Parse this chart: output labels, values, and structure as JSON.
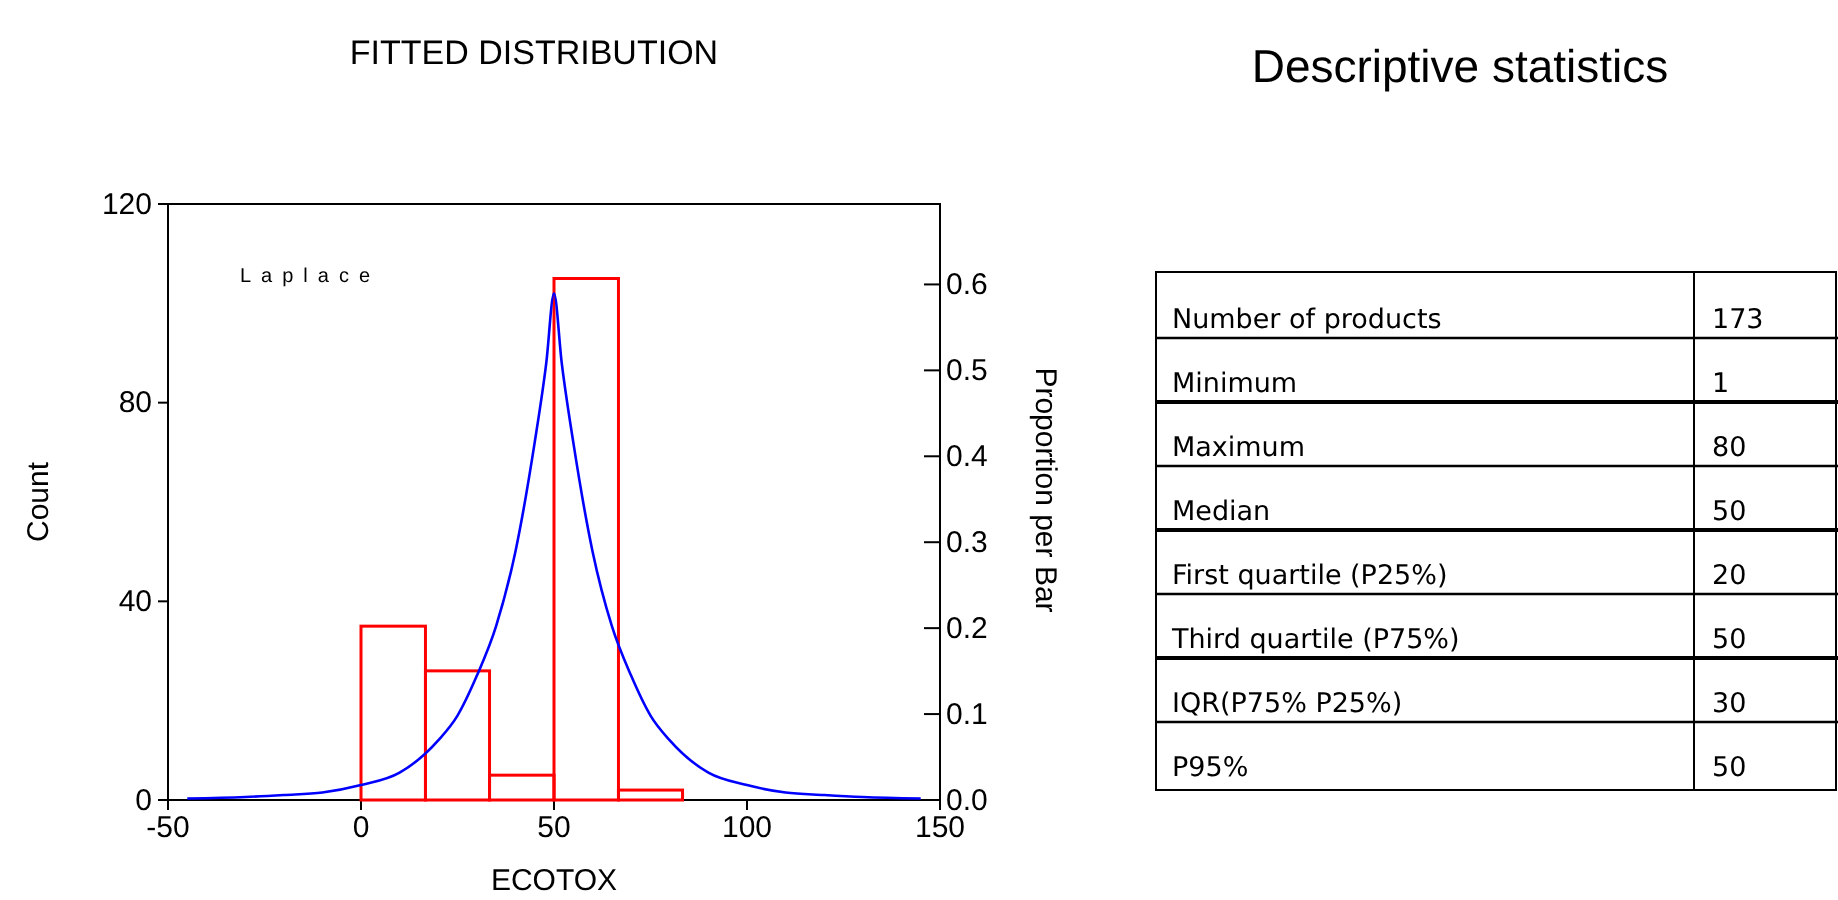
{
  "chart_data": [
    {
      "type": "histogram",
      "title": "FITTED DISTRIBUTION",
      "xlabel": "ECOTOX",
      "ylabel": "Count",
      "y2label": "Proportion per Bar",
      "annotations": [
        "Laplace"
      ],
      "bins": [
        0,
        16.7,
        33.3,
        50,
        66.7,
        83.3
      ],
      "series": [
        {
          "type": "histogram",
          "color": "#ff0000",
          "values": [
            35,
            26,
            5,
            105,
            2
          ]
        },
        {
          "type": "line",
          "color": "#0000ff",
          "x": [
            -45,
            -30,
            -20,
            -10,
            0,
            10,
            20,
            25,
            30,
            35,
            40,
            45,
            48,
            50,
            52,
            55,
            60,
            65,
            70,
            75,
            80,
            90,
            100,
            110,
            120,
            130,
            145
          ],
          "values": [
            0.3,
            0.6,
            1,
            1.5,
            3,
            5.5,
            12,
            17,
            25,
            35,
            50,
            72,
            88,
            102,
            88,
            72,
            50,
            35,
            25,
            17,
            12,
            5.5,
            3,
            1.5,
            1,
            0.6,
            0.3
          ]
        }
      ],
      "xlim": [
        -50,
        150
      ],
      "xticks": [
        -50,
        0,
        50,
        100,
        150
      ],
      "ylim": [
        0,
        120
      ],
      "yticks": [
        0,
        40,
        80,
        120
      ],
      "y2lim": [
        0,
        0.6936
      ],
      "y2ticks": [
        {
          "value": 0,
          "label": "0.0"
        },
        {
          "value": 0.1,
          "label": "0.1"
        },
        {
          "value": 0.2,
          "label": "0.2"
        },
        {
          "value": 0.3,
          "label": "0.3"
        },
        {
          "value": 0.4,
          "label": "0.4"
        },
        {
          "value": 0.5,
          "label": "0.5"
        },
        {
          "value": 0.6,
          "label": "0.6"
        }
      ],
      "grid": false
    },
    {
      "type": "other",
      "title": "Descriptive statistics",
      "categories": [
        "Number of products",
        "Minimum",
        "Maximum",
        "Median",
        "First quartile (P25%)",
        "Third quartile (P75%)",
        "IQR(P75% P25%)",
        "P95%"
      ],
      "values": [
        173,
        1,
        80,
        50,
        20,
        50,
        30,
        50
      ],
      "data_labels": true
    }
  ]
}
